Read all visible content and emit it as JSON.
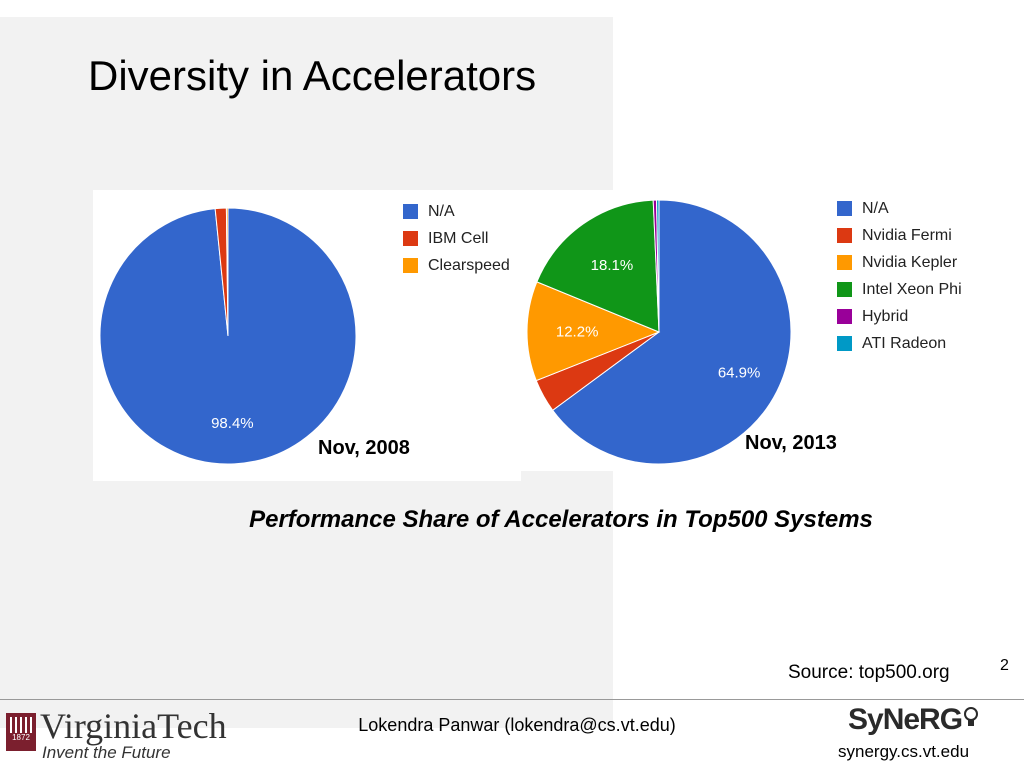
{
  "slide": {
    "title": "Diversity in Accelerators",
    "caption": "Performance Share of Accelerators in Top500 Systems",
    "source": "Source: top500.org",
    "page_number": "2",
    "footer_center": "Lokendra Panwar (lokendra@cs.vt.edu)",
    "footer_right_logo": "SyNeRG",
    "footer_right_url": "synergy.cs.vt.edu",
    "footer_left_logo": "VirginiaTech",
    "footer_left_tagline": "Invent the Future",
    "footer_left_seal": "1872"
  },
  "chart_data": [
    {
      "type": "pie",
      "title": "Nov, 2008",
      "categories": [
        "N/A",
        "IBM Cell",
        "Clearspeed"
      ],
      "values": [
        98.4,
        1.4,
        0.2
      ],
      "colors": [
        "#3366cc",
        "#dc3912",
        "#ff9900"
      ],
      "slice_labels": [
        "98.4%",
        "",
        ""
      ],
      "legend_position": "right"
    },
    {
      "type": "pie",
      "title": "Nov, 2013",
      "categories": [
        "N/A",
        "Nvidia Fermi",
        "Nvidia Kepler",
        "Intel Xeon Phi",
        "Hybrid",
        "ATI Radeon"
      ],
      "values": [
        64.9,
        4.1,
        12.2,
        18.1,
        0.4,
        0.3
      ],
      "colors": [
        "#3366cc",
        "#dc3912",
        "#ff9900",
        "#109618",
        "#990099",
        "#0099c6"
      ],
      "slice_labels": [
        "64.9%",
        "",
        "12.2%",
        "18.1%",
        "",
        ""
      ],
      "legend_position": "right"
    }
  ]
}
